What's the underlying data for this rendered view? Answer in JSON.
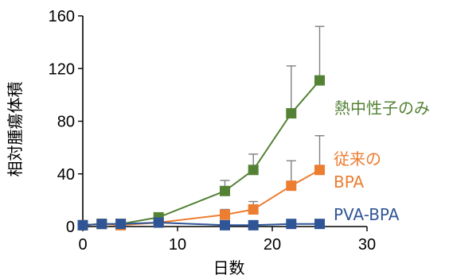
{
  "chart_data": {
    "type": "line",
    "xlabel": "日数",
    "ylabel": "相対腫瘍体積",
    "xlim": [
      0,
      30
    ],
    "ylim": [
      0,
      160
    ],
    "xticks": [
      0,
      10,
      20,
      30
    ],
    "yticks": [
      0,
      40,
      80,
      120,
      160
    ],
    "grid": false,
    "legend": "inline labels at right end of each series",
    "series": [
      {
        "name": "熱中性子のみ",
        "color": "#548235",
        "x": [
          0,
          2,
          4,
          8,
          15,
          18,
          22,
          25
        ],
        "y": [
          1,
          2,
          2,
          7,
          27,
          43,
          86,
          111
        ],
        "err": [
          0,
          0,
          0,
          0,
          8,
          12,
          36,
          41
        ],
        "label_lines": [
          "熱中性子のみ"
        ]
      },
      {
        "name": "従来のBPA",
        "color": "#ED7D31",
        "x": [
          0,
          2,
          4,
          8,
          15,
          18,
          22,
          25
        ],
        "y": [
          1,
          2,
          1,
          3,
          9,
          13,
          31,
          43
        ],
        "err": [
          0,
          0,
          0,
          0,
          4,
          6,
          19,
          26
        ],
        "label_lines": [
          "従来の",
          "BPA"
        ]
      },
      {
        "name": "PVA-BPA",
        "color": "#2F5597",
        "x": [
          0,
          2,
          4,
          8,
          15,
          18,
          22,
          25
        ],
        "y": [
          1,
          2,
          2,
          3,
          1,
          1,
          2,
          2
        ],
        "err": [
          0,
          0,
          0,
          0,
          0,
          0,
          0,
          0
        ],
        "label_lines": [
          "PVA-BPA"
        ]
      }
    ]
  }
}
